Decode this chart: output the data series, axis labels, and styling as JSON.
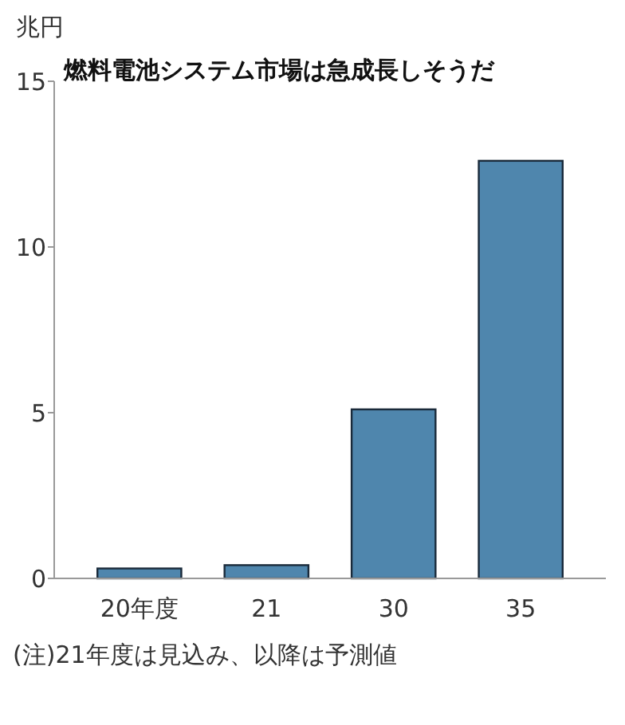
{
  "chart_data": {
    "type": "bar",
    "title": "燃料電池システム市場は急成長しそうだ",
    "ylabel": "兆円",
    "categories": [
      "20年度",
      "21",
      "30",
      "35"
    ],
    "values": [
      0.3,
      0.4,
      5.1,
      12.6
    ],
    "color": "#4f86ad",
    "ylim": [
      0,
      15
    ],
    "yticks": [
      0,
      5,
      10,
      15
    ],
    "grid": false,
    "annotations": [
      "(注)21年度は見込み、以降は予測値"
    ]
  }
}
